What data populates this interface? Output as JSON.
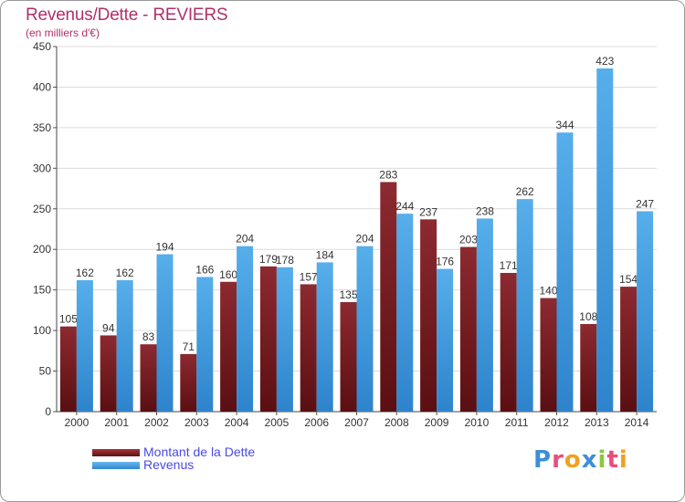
{
  "header": {
    "title": "Revenus/Dette - REVIERS",
    "subtitle": "(en milliers d'€)"
  },
  "legend": {
    "items": [
      {
        "label": "Montant de la Dette",
        "color": "#7a1f24"
      },
      {
        "label": "Revenus",
        "color": "#3d95d9"
      }
    ]
  },
  "logo": {
    "letters": [
      {
        "char": "P",
        "color": "#3d8fd6"
      },
      {
        "char": "r",
        "color": "#e94e7a"
      },
      {
        "char": "o",
        "color": "#f0a020"
      },
      {
        "char": "x",
        "color": "#3d8fd6"
      },
      {
        "char": "i",
        "color": "#8cc63f"
      },
      {
        "char": "t",
        "color": "#e94e7a"
      },
      {
        "char": "i",
        "color": "#f0a020"
      }
    ]
  },
  "chart_data": {
    "type": "bar",
    "title": "Revenus/Dette - REVIERS",
    "subtitle": "(en milliers d'€)",
    "categories": [
      "2000",
      "2001",
      "2002",
      "2003",
      "2004",
      "2005",
      "2006",
      "2007",
      "2008",
      "2009",
      "2010",
      "2011",
      "2012",
      "2013",
      "2014"
    ],
    "series": [
      {
        "name": "Montant de la Dette",
        "color": "#7a1f24",
        "values": [
          105,
          94,
          83,
          71,
          160,
          179,
          157,
          135,
          283,
          237,
          203,
          171,
          140,
          108,
          154
        ]
      },
      {
        "name": "Revenus",
        "color": "#3d95d9",
        "values": [
          162,
          162,
          194,
          166,
          204,
          178,
          184,
          204,
          244,
          176,
          238,
          262,
          344,
          423,
          247
        ]
      }
    ],
    "ylim": [
      0,
      450
    ],
    "yticks": [
      0,
      50,
      100,
      150,
      200,
      250,
      300,
      350,
      400,
      450
    ],
    "grid": true,
    "legend_position": "bottom-left"
  }
}
